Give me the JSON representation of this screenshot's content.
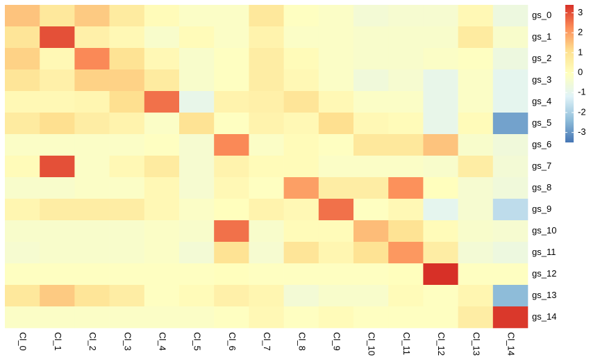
{
  "chart_data": {
    "type": "heatmap",
    "rows": [
      "gs_0",
      "gs_1",
      "gs_2",
      "gs_3",
      "gs_4",
      "gs_5",
      "gs_6",
      "gs_7",
      "gs_8",
      "gs_9",
      "gs_10",
      "gs_11",
      "gs_12",
      "gs_13",
      "gs_14"
    ],
    "columns": [
      "Cl_0",
      "Cl_1",
      "Cl_2",
      "Cl_3",
      "Cl_4",
      "Cl_5",
      "Cl_6",
      "Cl_7",
      "Cl_8",
      "Cl_9",
      "Cl_10",
      "Cl_11",
      "Cl_12",
      "Cl_13",
      "Cl_14"
    ],
    "values": [
      [
        1.5,
        0.8,
        1.4,
        0.7,
        0.1,
        -0.2,
        -0.2,
        0.8,
        -0.1,
        -0.2,
        -0.5,
        -0.4,
        -0.4,
        0.2,
        -0.7
      ],
      [
        0.9,
        3.0,
        0.5,
        0.2,
        -0.3,
        0.1,
        -0.2,
        0.4,
        -0.2,
        -0.2,
        -0.3,
        -0.3,
        -0.3,
        0.7,
        -0.3
      ],
      [
        1.3,
        0.2,
        2.3,
        1.0,
        0.2,
        -0.3,
        -0.1,
        0.6,
        0.1,
        -0.2,
        -0.3,
        -0.3,
        -0.2,
        -0.1,
        -0.7
      ],
      [
        0.9,
        0.5,
        1.3,
        1.3,
        0.7,
        -0.3,
        -0.1,
        0.6,
        0.2,
        -0.2,
        -0.6,
        -0.4,
        -0.9,
        -0.2,
        -1.0
      ],
      [
        0.2,
        0.2,
        0.3,
        1.1,
        2.6,
        -0.9,
        0.4,
        0.5,
        0.9,
        0.2,
        -0.2,
        -0.2,
        -0.9,
        -0.2,
        -1.0
      ],
      [
        0.7,
        1.1,
        0.6,
        0.4,
        -0.2,
        1.0,
        -0.1,
        0.4,
        0.2,
        1.1,
        0.2,
        0.1,
        -0.9,
        0.1,
        -2.8
      ],
      [
        -0.2,
        -0.2,
        -0.2,
        -0.2,
        -0.1,
        -0.4,
        2.3,
        -0.2,
        0.1,
        -0.1,
        0.8,
        0.8,
        1.5,
        -0.3,
        -0.6
      ],
      [
        0.1,
        3.0,
        -0.2,
        0.2,
        0.7,
        -0.4,
        0.4,
        0.1,
        0.1,
        -0.2,
        -0.2,
        -0.2,
        -0.3,
        0.6,
        -0.5
      ],
      [
        -0.3,
        -0.3,
        -0.2,
        -0.2,
        0.2,
        -0.4,
        0.2,
        -0.1,
        2.0,
        0.6,
        0.6,
        2.2,
        0.0,
        -0.4,
        -0.6
      ],
      [
        0.3,
        0.6,
        0.6,
        0.6,
        0.2,
        -0.2,
        0.0,
        0.4,
        0.2,
        2.6,
        -0.1,
        0.2,
        -1.0,
        -0.4,
        -1.7
      ],
      [
        -0.3,
        -0.3,
        -0.3,
        -0.3,
        -0.2,
        -0.3,
        2.6,
        -0.3,
        0.1,
        0.1,
        1.6,
        1.0,
        0.1,
        -0.3,
        -0.4
      ],
      [
        -0.4,
        -0.3,
        -0.3,
        -0.3,
        -0.2,
        -0.5,
        1.0,
        -0.4,
        0.9,
        0.3,
        1.0,
        2.1,
        0.6,
        -0.5,
        -0.7
      ],
      [
        -0.1,
        -0.1,
        -0.1,
        -0.1,
        -0.1,
        -0.1,
        0.0,
        -0.1,
        -0.1,
        -0.1,
        -0.1,
        0.0,
        3.4,
        -0.1,
        -0.1
      ],
      [
        0.8,
        1.4,
        0.9,
        0.6,
        -0.1,
        0.1,
        0.5,
        0.3,
        -0.5,
        -0.3,
        -0.3,
        0.1,
        -0.1,
        0.3,
        -2.4
      ],
      [
        -0.2,
        -0.2,
        -0.2,
        -0.2,
        -0.2,
        -0.2,
        -0.1,
        0.2,
        -0.1,
        0.1,
        -0.1,
        -0.1,
        -0.1,
        0.6,
        3.3
      ]
    ],
    "zlim": [
      -3.5,
      3.4
    ],
    "colorbar_ticks": [
      3,
      2,
      1,
      0,
      -1,
      -2,
      -3
    ],
    "colormap": [
      "#4575B4",
      "#91BFDB",
      "#E0F3F8",
      "#FFFFBF",
      "#FEE090",
      "#FC8D59",
      "#D73027"
    ]
  }
}
